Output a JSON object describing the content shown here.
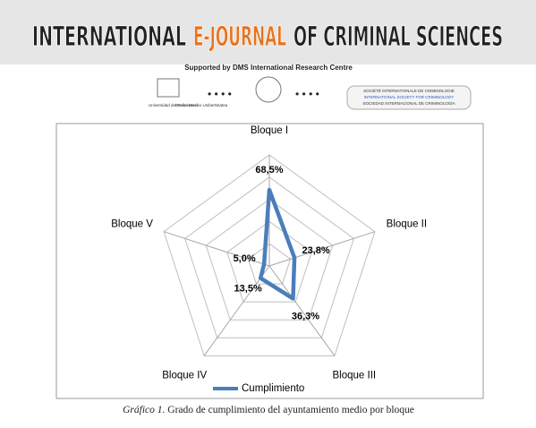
{
  "header": {
    "title_parts": [
      "INTERNATIONAL",
      "E-JOURNAL",
      "OF CRIMINAL SCIENCES"
    ],
    "subtitle": "Supported by DMS International Research Centre",
    "logo_left": [
      "Universidad del País Vasco",
      "Euskal Herriko Unibertsitatea"
    ],
    "logo_right": [
      "SOCIÉTÉ INTERNATIONALE DE CRIMINOLOGIE",
      "INTERNATIONAL SOCIETY FOR CRIMINOLOGY",
      "SOCIEDAD INTERNACIONAL DE CRIMINOLOGÍA"
    ]
  },
  "chart_data": {
    "type": "radar",
    "categories": [
      "Bloque I",
      "Bloque II",
      "Bloque III",
      "Bloque IV",
      "Bloque V"
    ],
    "series": [
      {
        "name": "Cumplimiento",
        "color": "#4a7ebb",
        "values": [
          68.5,
          23.8,
          36.3,
          13.5,
          5.0
        ],
        "value_labels": [
          "68,5%",
          "23,8%",
          "36,3%",
          "13,5%",
          "5,0%"
        ]
      }
    ],
    "rlim": [
      0,
      100
    ],
    "rticks": [
      0,
      20,
      40,
      60,
      80,
      100
    ],
    "grid": true,
    "legend": "bottom"
  },
  "caption": {
    "label": "Gráfico 1.",
    "text": "Grado de cumplimiento del ayuntamiento medio por bloque"
  }
}
